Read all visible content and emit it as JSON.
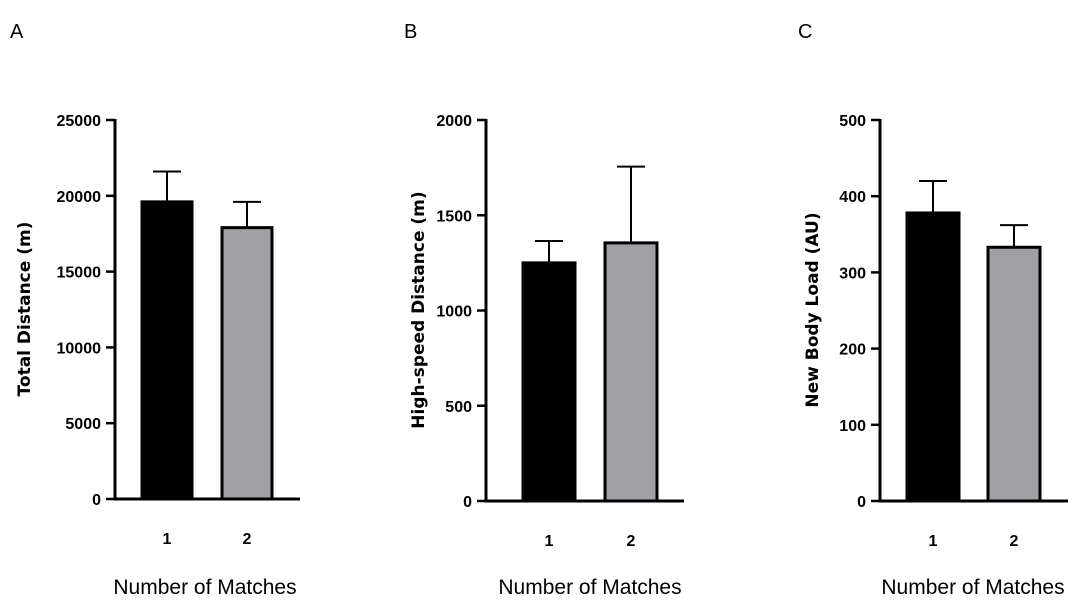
{
  "chart_data": [
    {
      "type": "bar",
      "panel": "A",
      "categories": [
        "1",
        "2"
      ],
      "values": [
        19600,
        17900
      ],
      "errors": [
        2000,
        1700
      ],
      "colors": [
        "#000000",
        "#a0a0a4"
      ],
      "xlabel": "Number of Matches",
      "ylabel": "Total Distance (m)",
      "ylim": [
        0,
        25000
      ],
      "yticks": [
        "0",
        "5000",
        "10000",
        "15000",
        "20000",
        "25000"
      ],
      "grid": false
    },
    {
      "type": "bar",
      "panel": "B",
      "categories": [
        "1",
        "2"
      ],
      "values": [
        1250,
        1355
      ],
      "errors": [
        115,
        400
      ],
      "colors": [
        "#000000",
        "#a0a0a4"
      ],
      "xlabel": "Number of Matches",
      "ylabel": "High-speed Distance (m)",
      "ylim": [
        0,
        2000
      ],
      "yticks": [
        "0",
        "500",
        "1000",
        "1500",
        "2000"
      ],
      "grid": false
    },
    {
      "type": "bar",
      "panel": "C",
      "categories": [
        "1",
        "2"
      ],
      "values": [
        378,
        333
      ],
      "errors": [
        42,
        29
      ],
      "colors": [
        "#000000",
        "#a0a0a4"
      ],
      "xlabel": "Number of Matches",
      "ylabel": "New Body Load (AU)",
      "ylim": [
        0,
        500
      ],
      "yticks": [
        "0",
        "100",
        "200",
        "300",
        "400",
        "500"
      ],
      "grid": false
    }
  ]
}
